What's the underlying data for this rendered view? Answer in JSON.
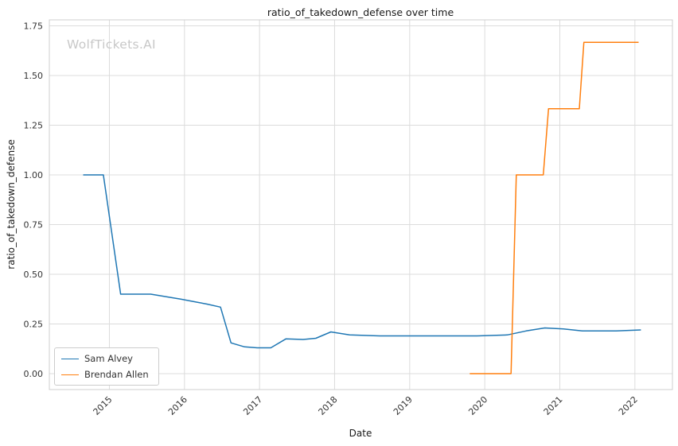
{
  "watermark": "WolfTickets.AI",
  "chart_data": {
    "type": "line",
    "title": "ratio_of_takedown_defense over time",
    "xlabel": "Date",
    "ylabel": "ratio_of_takedown_defense",
    "xlim": [
      2014.2,
      2022.5
    ],
    "ylim": [
      -0.08,
      1.78
    ],
    "grid": true,
    "legend_position": "lower left",
    "xticks": {
      "values": [
        2015,
        2016,
        2017,
        2018,
        2019,
        2020,
        2021,
        2022
      ],
      "labels": [
        "2015",
        "2016",
        "2017",
        "2018",
        "2019",
        "2020",
        "2021",
        "2022"
      ]
    },
    "yticks": {
      "values": [
        0.0,
        0.25,
        0.5,
        0.75,
        1.0,
        1.25,
        1.5,
        1.75
      ],
      "labels": [
        "0.00",
        "0.25",
        "0.50",
        "0.75",
        "1.00",
        "1.25",
        "1.50",
        "1.75"
      ]
    },
    "colors": {
      "grid": "#dcdcdc",
      "spine": "#cfcfcf",
      "tick_text": "#333333",
      "watermark": "#c8c8c8"
    },
    "series": [
      {
        "name": "Sam Alvey",
        "color": "#1f77b4",
        "x": [
          2014.65,
          2014.92,
          2015.15,
          2015.55,
          2015.95,
          2016.3,
          2016.48,
          2016.62,
          2016.8,
          2016.97,
          2017.15,
          2017.35,
          2017.58,
          2017.75,
          2017.95,
          2018.2,
          2018.6,
          2019.2,
          2019.9,
          2020.3,
          2020.55,
          2020.8,
          2021.05,
          2021.3,
          2021.75,
          2022.08
        ],
        "y": [
          1.0,
          1.0,
          0.4,
          0.4,
          0.375,
          0.35,
          0.335,
          0.155,
          0.135,
          0.13,
          0.13,
          0.175,
          0.172,
          0.178,
          0.21,
          0.195,
          0.19,
          0.19,
          0.19,
          0.195,
          0.215,
          0.23,
          0.225,
          0.215,
          0.215,
          0.22
        ]
      },
      {
        "name": "Brendan Allen",
        "color": "#ff7f0e",
        "x": [
          2019.8,
          2020.35,
          2020.42,
          2020.78,
          2020.85,
          2021.26,
          2021.32,
          2022.05
        ],
        "y": [
          0.0,
          0.0,
          1.0,
          1.0,
          1.333,
          1.333,
          1.667,
          1.667
        ]
      }
    ]
  }
}
